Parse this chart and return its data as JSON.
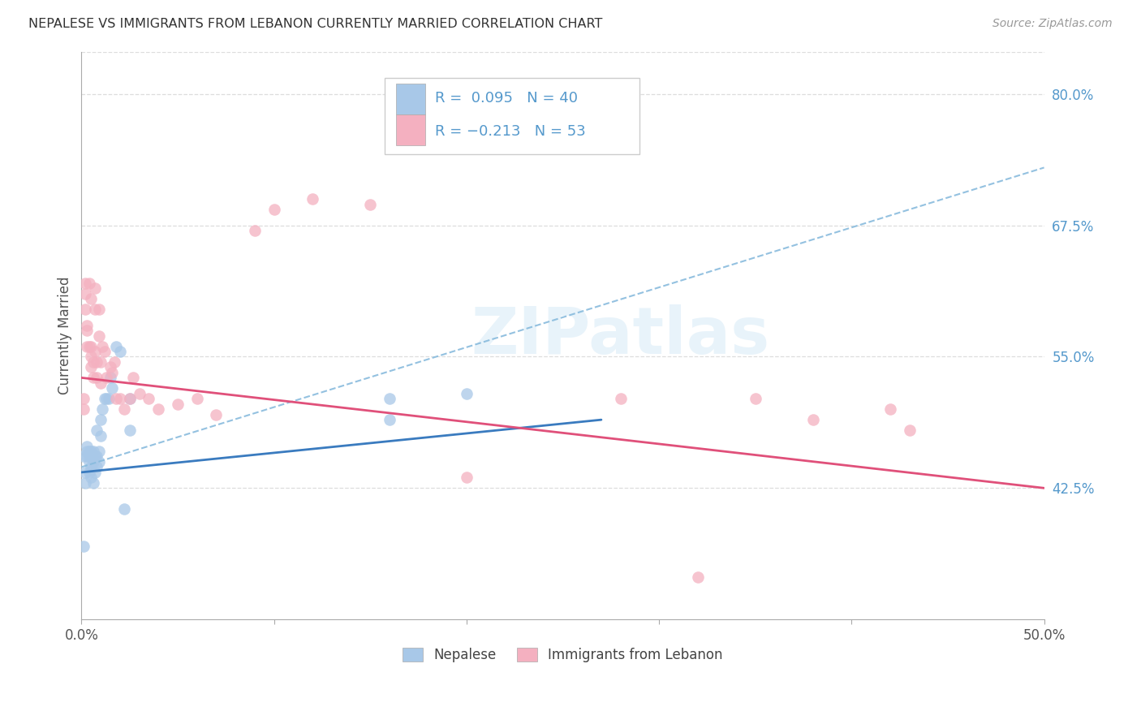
{
  "title": "NEPALESE VS IMMIGRANTS FROM LEBANON CURRENTLY MARRIED CORRELATION CHART",
  "source": "Source: ZipAtlas.com",
  "ylabel": "Currently Married",
  "yticks": [
    0.425,
    0.55,
    0.675,
    0.8
  ],
  "ytick_labels": [
    "42.5%",
    "55.0%",
    "67.5%",
    "80.0%"
  ],
  "xlim": [
    0.0,
    0.5
  ],
  "ylim": [
    0.3,
    0.84
  ],
  "watermark": "ZIPatlas",
  "blue_color": "#a8c8e8",
  "pink_color": "#f4b0c0",
  "blue_line_color": "#3a7bbf",
  "pink_line_color": "#e0507a",
  "dashed_line_color": "#88bbdd",
  "text_color": "#333333",
  "tick_color": "#5599cc",
  "grid_color": "#dddddd",
  "nepalese_x": [
    0.001,
    0.001,
    0.002,
    0.002,
    0.003,
    0.003,
    0.003,
    0.004,
    0.004,
    0.004,
    0.004,
    0.005,
    0.005,
    0.005,
    0.006,
    0.006,
    0.006,
    0.007,
    0.007,
    0.008,
    0.008,
    0.008,
    0.009,
    0.009,
    0.01,
    0.01,
    0.011,
    0.012,
    0.013,
    0.014,
    0.015,
    0.016,
    0.018,
    0.02,
    0.022,
    0.025,
    0.025,
    0.16,
    0.16,
    0.2
  ],
  "nepalese_y": [
    0.37,
    0.455,
    0.43,
    0.44,
    0.455,
    0.46,
    0.465,
    0.44,
    0.45,
    0.455,
    0.46,
    0.435,
    0.445,
    0.46,
    0.43,
    0.45,
    0.46,
    0.44,
    0.455,
    0.445,
    0.455,
    0.48,
    0.45,
    0.46,
    0.475,
    0.49,
    0.5,
    0.51,
    0.51,
    0.51,
    0.53,
    0.52,
    0.56,
    0.555,
    0.405,
    0.51,
    0.48,
    0.51,
    0.49,
    0.515
  ],
  "lebanon_x": [
    0.001,
    0.001,
    0.002,
    0.002,
    0.002,
    0.003,
    0.003,
    0.003,
    0.004,
    0.004,
    0.005,
    0.005,
    0.005,
    0.005,
    0.006,
    0.006,
    0.007,
    0.007,
    0.007,
    0.008,
    0.008,
    0.009,
    0.009,
    0.01,
    0.01,
    0.011,
    0.012,
    0.013,
    0.015,
    0.016,
    0.017,
    0.018,
    0.02,
    0.022,
    0.025,
    0.027,
    0.03,
    0.035,
    0.04,
    0.05,
    0.06,
    0.07,
    0.09,
    0.1,
    0.12,
    0.15,
    0.2,
    0.28,
    0.32,
    0.35,
    0.38,
    0.42,
    0.43
  ],
  "lebanon_y": [
    0.5,
    0.51,
    0.595,
    0.61,
    0.62,
    0.56,
    0.575,
    0.58,
    0.56,
    0.62,
    0.54,
    0.55,
    0.56,
    0.605,
    0.53,
    0.545,
    0.555,
    0.615,
    0.595,
    0.53,
    0.545,
    0.57,
    0.595,
    0.525,
    0.545,
    0.56,
    0.555,
    0.53,
    0.54,
    0.535,
    0.545,
    0.51,
    0.51,
    0.5,
    0.51,
    0.53,
    0.515,
    0.51,
    0.5,
    0.505,
    0.51,
    0.495,
    0.67,
    0.69,
    0.7,
    0.695,
    0.435,
    0.51,
    0.34,
    0.51,
    0.49,
    0.5,
    0.48
  ],
  "blue_trendline": [
    0.0,
    0.27,
    0.44,
    0.49
  ],
  "pink_trendline": [
    0.0,
    0.5,
    0.53,
    0.425
  ],
  "dashed_trendline": [
    0.0,
    0.5,
    0.445,
    0.73
  ]
}
